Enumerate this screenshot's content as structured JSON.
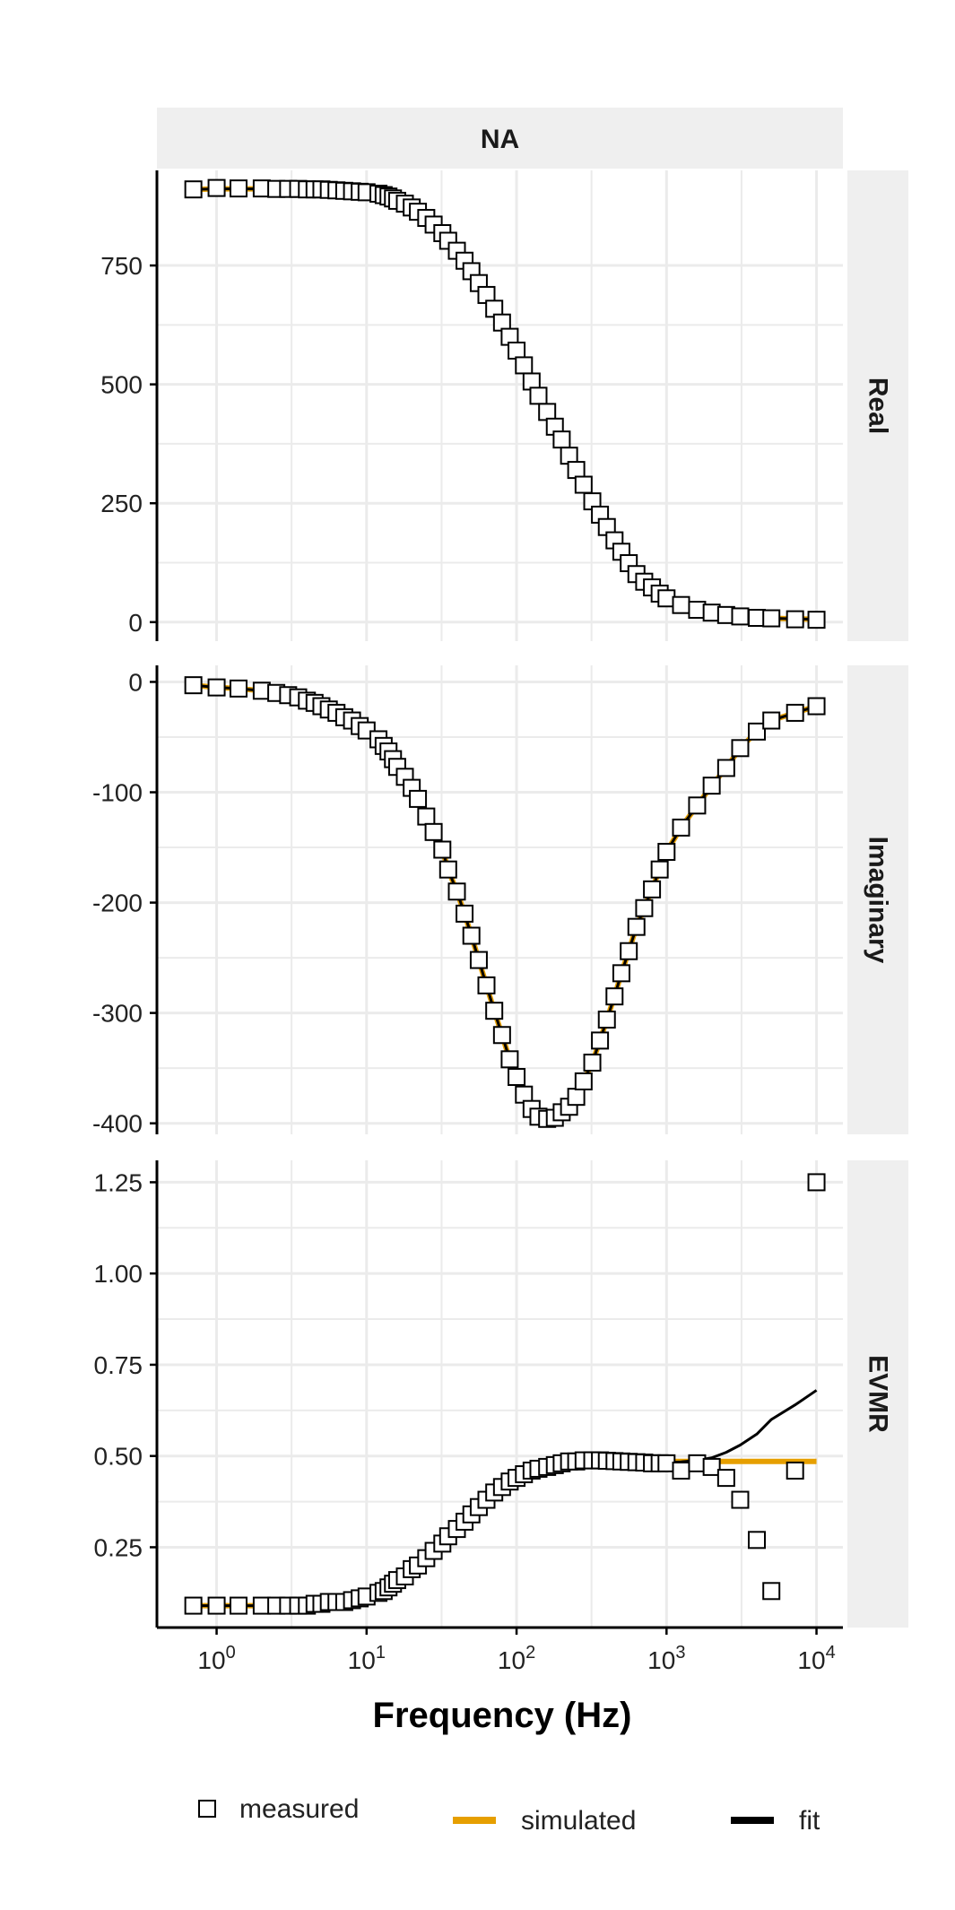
{
  "chart_data": {
    "type": "scatter",
    "facet_strip": "NA",
    "xlabel": "Frequency (Hz)",
    "x_scale": "log10",
    "xlim": [
      0.4,
      15000
    ],
    "x_ticks": [
      {
        "value": 1,
        "base": "10",
        "exp": "0"
      },
      {
        "value": 10,
        "base": "10",
        "exp": "1"
      },
      {
        "value": 100,
        "base": "10",
        "exp": "2"
      },
      {
        "value": 1000,
        "base": "10",
        "exp": "3"
      },
      {
        "value": 10000,
        "base": "10",
        "exp": "4"
      }
    ],
    "grid": true,
    "legend": {
      "position": "bottom",
      "items": [
        {
          "label": "measured",
          "kind": "square"
        },
        {
          "label": "simulated",
          "kind": "line",
          "color": "#E69F00"
        },
        {
          "label": "fit",
          "kind": "line",
          "color": "#000000"
        }
      ]
    },
    "colors": {
      "simulated": "#E69F00",
      "fit": "#000000",
      "measured_fill": "#ffffff",
      "measured_stroke": "#000000",
      "strip": "#efefef",
      "grid": "#ebebeb"
    },
    "x": [
      0.7,
      1.0,
      1.4,
      2.0,
      2.5,
      3.0,
      3.5,
      4.0,
      4.5,
      5.0,
      5.6,
      6.3,
      7.1,
      8.0,
      9.0,
      10.0,
      12.0,
      13.0,
      14.0,
      15.0,
      16.0,
      18.0,
      20.0,
      22.0,
      25.0,
      28.0,
      32.0,
      35.0,
      40.0,
      45.0,
      50.0,
      56.0,
      63.0,
      71.0,
      80.0,
      90.0,
      100.0,
      112.0,
      126.0,
      140.0,
      160.0,
      180.0,
      200.0,
      224.0,
      250.0,
      280.0,
      320.0,
      360.0,
      400.0,
      450.0,
      500.0,
      560.0,
      630.0,
      710.0,
      800.0,
      900.0,
      1000.0,
      1250.0,
      1600.0,
      2000.0,
      2500.0,
      3100.0,
      4000.0,
      5000.0,
      7200.0,
      10000.0
    ],
    "panels": [
      {
        "name": "Real",
        "ylim": [
          -40,
          950
        ],
        "y_ticks": [
          0,
          250,
          500,
          750
        ],
        "measured": [
          910,
          913,
          912,
          912,
          911,
          911,
          911,
          910,
          910,
          910,
          909,
          908,
          907,
          906,
          905,
          904,
          901,
          898,
          895,
          891,
          886,
          880,
          872,
          863,
          850,
          836,
          818,
          802,
          781,
          760,
          738,
          713,
          688,
          659,
          630,
          600,
          571,
          540,
          506,
          476,
          442,
          411,
          384,
          350,
          320,
          289,
          254,
          226,
          200,
          172,
          148,
          124,
          101,
          85,
          73,
          60,
          50,
          36,
          26,
          20,
          15,
          12,
          9,
          8,
          6,
          5
        ],
        "simulated": [
          910,
          911,
          911,
          911,
          911,
          910,
          910,
          910,
          909,
          909,
          908,
          907,
          906,
          905,
          904,
          902,
          899,
          896,
          893,
          889,
          884,
          878,
          870,
          861,
          848,
          834,
          816,
          800,
          779,
          758,
          736,
          712,
          686,
          658,
          628,
          599,
          570,
          539,
          505,
          475,
          442,
          411,
          383,
          350,
          320,
          289,
          254,
          226,
          200,
          173,
          149,
          125,
          102,
          86,
          73,
          61,
          51,
          37,
          27,
          20,
          16,
          12,
          10,
          8,
          7,
          6
        ],
        "fit": [
          910,
          911,
          911,
          911,
          911,
          910,
          910,
          910,
          909,
          909,
          908,
          907,
          906,
          905,
          904,
          902,
          899,
          896,
          893,
          889,
          884,
          878,
          870,
          861,
          848,
          834,
          816,
          800,
          779,
          758,
          736,
          712,
          686,
          658,
          628,
          599,
          570,
          539,
          505,
          475,
          442,
          411,
          383,
          350,
          320,
          289,
          254,
          226,
          200,
          173,
          149,
          125,
          102,
          86,
          73,
          61,
          51,
          37,
          27,
          20,
          16,
          12,
          10,
          8,
          7,
          6
        ]
      },
      {
        "name": "Imaginary",
        "ylim": [
          -410,
          15
        ],
        "y_ticks": [
          0,
          -100,
          -200,
          -300,
          -400
        ],
        "measured": [
          -3,
          -5,
          -6,
          -8,
          -10,
          -12,
          -14,
          -17,
          -19,
          -22,
          -25,
          -28,
          -32,
          -35,
          -40,
          -44,
          -52,
          -58,
          -63,
          -70,
          -77,
          -86,
          -96,
          -106,
          -122,
          -136,
          -152,
          -170,
          -190,
          -210,
          -230,
          -252,
          -275,
          -298,
          -320,
          -342,
          -358,
          -374,
          -387,
          -394,
          -396,
          -395,
          -390,
          -385,
          -376,
          -362,
          -345,
          -325,
          -306,
          -285,
          -264,
          -244,
          -222,
          -205,
          -188,
          -170,
          -154,
          -132,
          -112,
          -94,
          -78,
          -60,
          -45,
          -35,
          -28,
          -22
        ],
        "simulated": [
          -3,
          -5,
          -6,
          -8,
          -10,
          -12,
          -14,
          -17,
          -19,
          -22,
          -25,
          -28,
          -32,
          -35,
          -40,
          -44,
          -52,
          -58,
          -63,
          -70,
          -77,
          -86,
          -96,
          -106,
          -122,
          -136,
          -152,
          -170,
          -190,
          -210,
          -230,
          -252,
          -275,
          -298,
          -320,
          -342,
          -358,
          -374,
          -387,
          -394,
          -396,
          -395,
          -390,
          -385,
          -376,
          -362,
          -345,
          -325,
          -306,
          -285,
          -264,
          -244,
          -222,
          -205,
          -188,
          -170,
          -154,
          -132,
          -112,
          -94,
          -78,
          -60,
          -45,
          -35,
          -28,
          -22
        ],
        "fit": [
          -3,
          -5,
          -6,
          -8,
          -10,
          -12,
          -14,
          -17,
          -19,
          -22,
          -25,
          -28,
          -32,
          -35,
          -40,
          -44,
          -52,
          -58,
          -63,
          -70,
          -77,
          -86,
          -96,
          -106,
          -122,
          -136,
          -152,
          -170,
          -190,
          -210,
          -230,
          -252,
          -275,
          -298,
          -320,
          -342,
          -358,
          -374,
          -387,
          -394,
          -396,
          -395,
          -390,
          -385,
          -376,
          -362,
          -345,
          -325,
          -306,
          -285,
          -264,
          -244,
          -222,
          -205,
          -188,
          -170,
          -154,
          -132,
          -112,
          -94,
          -78,
          -60,
          -45,
          -35,
          -28,
          -22
        ]
      },
      {
        "name": "EVMR",
        "ylim": [
          0.03,
          1.31
        ],
        "y_ticks": [
          0.25,
          0.5,
          0.75,
          1.0
        ],
        "y_tick_labels": [
          "0.25",
          "0.50",
          "0.75",
          "1.00",
          "1.25"
        ],
        "y_ticks_all": [
          0.25,
          0.5,
          0.75,
          1.0,
          1.25
        ],
        "measured": [
          0.09,
          0.09,
          0.09,
          0.09,
          0.09,
          0.09,
          0.09,
          0.09,
          0.095,
          0.095,
          0.1,
          0.1,
          0.1,
          0.105,
          0.11,
          0.115,
          0.125,
          0.13,
          0.14,
          0.15,
          0.16,
          0.17,
          0.19,
          0.2,
          0.22,
          0.24,
          0.26,
          0.28,
          0.3,
          0.32,
          0.34,
          0.36,
          0.38,
          0.4,
          0.415,
          0.43,
          0.44,
          0.45,
          0.46,
          0.465,
          0.47,
          0.475,
          0.48,
          0.485,
          0.485,
          0.488,
          0.488,
          0.488,
          0.487,
          0.486,
          0.485,
          0.484,
          0.483,
          0.482,
          0.48,
          0.48,
          0.48,
          0.46,
          0.48,
          0.47,
          0.44,
          0.38,
          0.27,
          0.13,
          0.46,
          1.25
        ],
        "simulated": [
          0.09,
          0.09,
          0.09,
          0.09,
          0.09,
          0.09,
          0.09,
          0.09,
          0.095,
          0.095,
          0.1,
          0.1,
          0.1,
          0.105,
          0.11,
          0.115,
          0.125,
          0.13,
          0.14,
          0.15,
          0.16,
          0.17,
          0.19,
          0.2,
          0.22,
          0.24,
          0.26,
          0.28,
          0.3,
          0.32,
          0.34,
          0.36,
          0.38,
          0.4,
          0.415,
          0.43,
          0.44,
          0.45,
          0.46,
          0.465,
          0.47,
          0.475,
          0.48,
          0.485,
          0.485,
          0.488,
          0.488,
          0.488,
          0.487,
          0.486,
          0.485,
          0.485,
          0.485,
          0.485,
          0.485,
          0.485,
          0.485,
          0.485,
          0.485,
          0.485,
          0.485,
          0.485,
          0.485,
          0.485,
          0.485,
          0.485
        ],
        "fit": [
          0.09,
          0.09,
          0.09,
          0.09,
          0.09,
          0.09,
          0.09,
          0.09,
          0.095,
          0.095,
          0.1,
          0.1,
          0.1,
          0.105,
          0.11,
          0.115,
          0.125,
          0.13,
          0.14,
          0.15,
          0.16,
          0.17,
          0.19,
          0.2,
          0.22,
          0.24,
          0.26,
          0.28,
          0.3,
          0.32,
          0.34,
          0.36,
          0.38,
          0.4,
          0.415,
          0.43,
          0.44,
          0.45,
          0.46,
          0.465,
          0.47,
          0.475,
          0.48,
          0.485,
          0.485,
          0.488,
          0.488,
          0.488,
          0.487,
          0.486,
          0.485,
          0.484,
          0.483,
          0.482,
          0.481,
          0.481,
          0.482,
          0.484,
          0.488,
          0.495,
          0.51,
          0.53,
          0.56,
          0.6,
          0.64,
          0.68
        ]
      }
    ]
  }
}
